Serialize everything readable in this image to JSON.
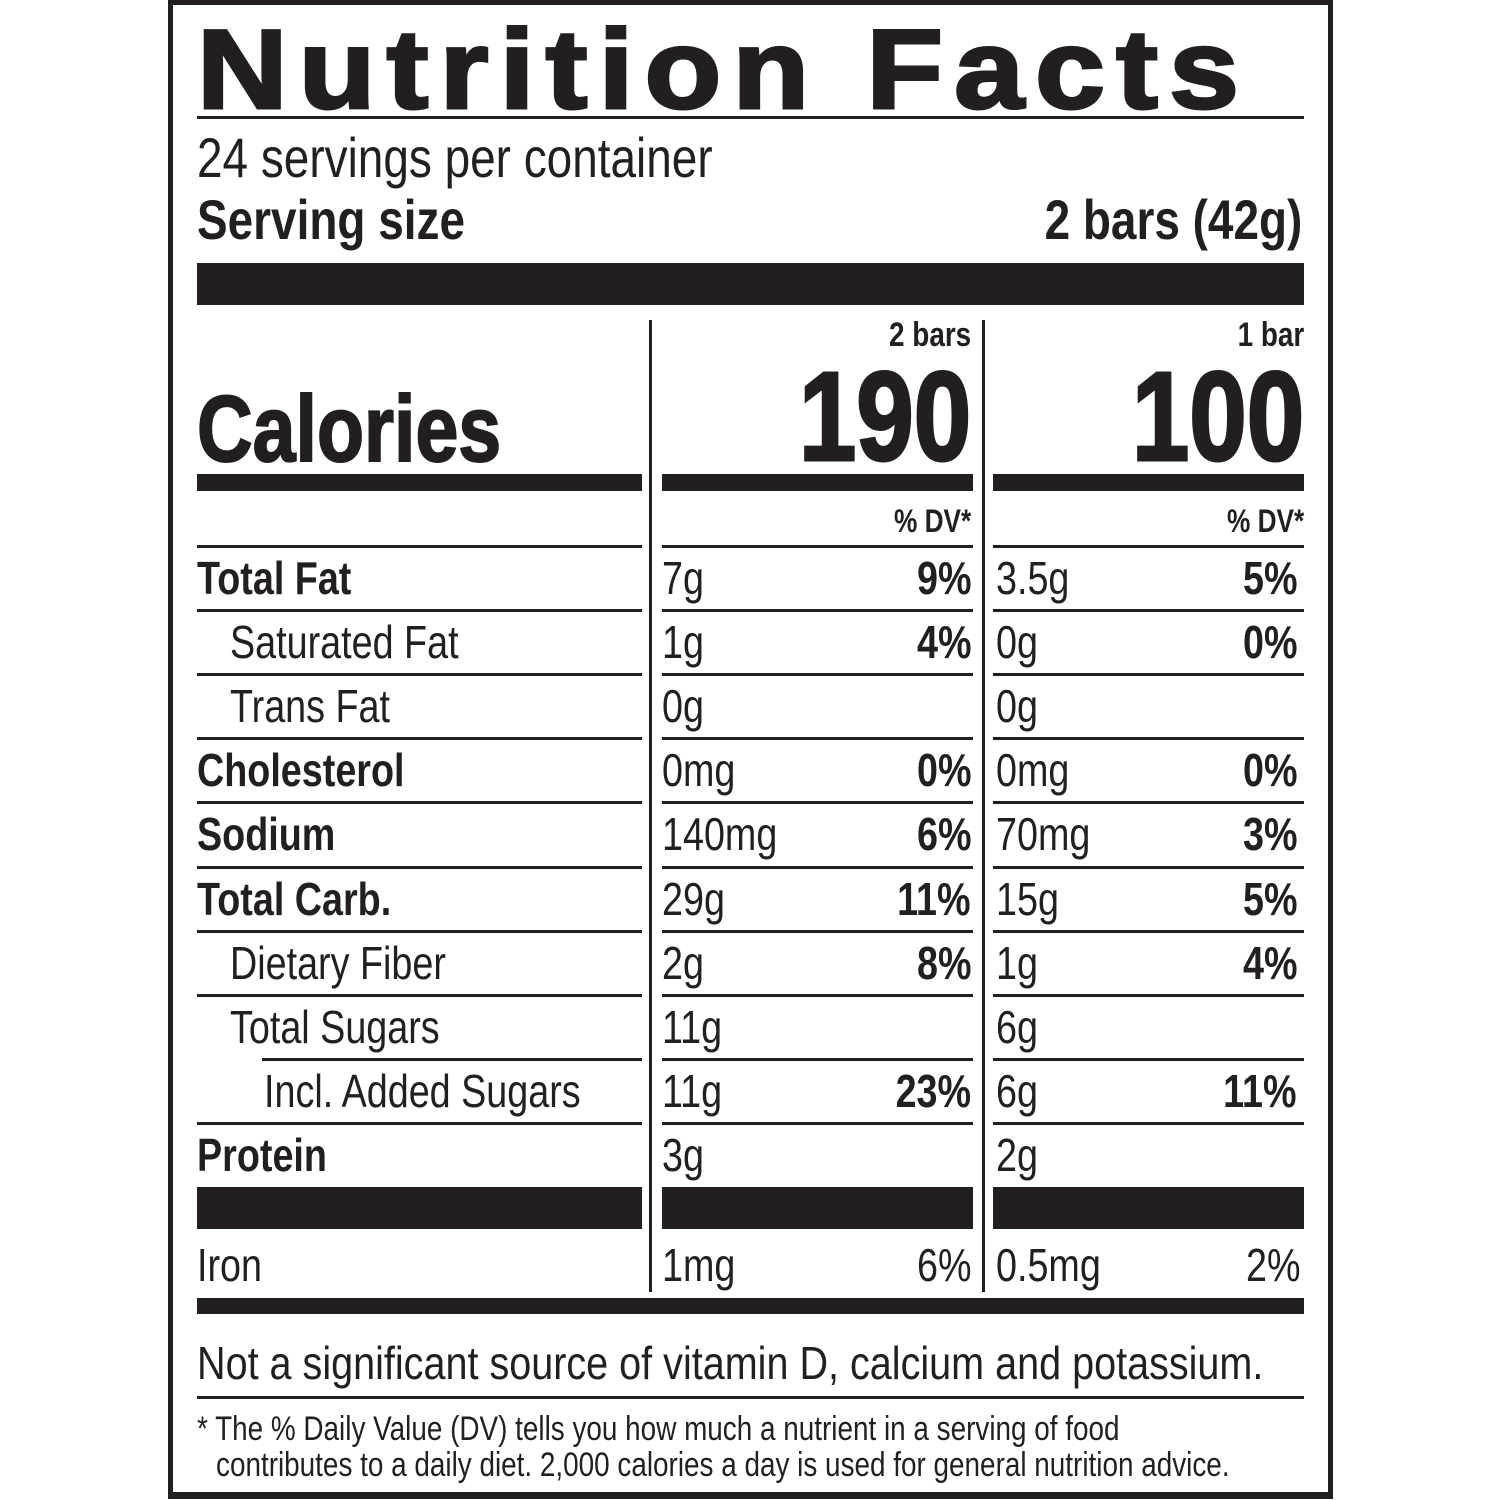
{
  "title": "Nutrition Facts",
  "servings_per_container": "24 servings per container",
  "serving_size_label": "Serving size",
  "serving_size_value": "2 bars (42g)",
  "calories_label": "Calories",
  "columns": [
    {
      "header": "2 bars",
      "calories": "190",
      "dv_header": "% DV*"
    },
    {
      "header": "1 bar",
      "calories": "100",
      "dv_header": "% DV*"
    }
  ],
  "nutrients": [
    {
      "name": "Total Fat",
      "bold": true,
      "indent": 0,
      "values": [
        {
          "amount": "7g",
          "dv": "9%"
        },
        {
          "amount": "3.5g",
          "dv": "5%"
        }
      ]
    },
    {
      "name": "Saturated Fat",
      "bold": false,
      "indent": 1,
      "values": [
        {
          "amount": "1g",
          "dv": "4%"
        },
        {
          "amount": "0g",
          "dv": "0%"
        }
      ]
    },
    {
      "name": "Trans Fat",
      "bold": false,
      "indent": 1,
      "values": [
        {
          "amount": "0g",
          "dv": ""
        },
        {
          "amount": "0g",
          "dv": ""
        }
      ]
    },
    {
      "name": "Cholesterol",
      "bold": true,
      "indent": 0,
      "values": [
        {
          "amount": "0mg",
          "dv": "0%"
        },
        {
          "amount": "0mg",
          "dv": "0%"
        }
      ]
    },
    {
      "name": "Sodium",
      "bold": true,
      "indent": 0,
      "values": [
        {
          "amount": "140mg",
          "dv": "6%"
        },
        {
          "amount": "70mg",
          "dv": "3%"
        }
      ]
    },
    {
      "name": "Total Carb.",
      "bold": true,
      "indent": 0,
      "values": [
        {
          "amount": "29g",
          "dv": "11%"
        },
        {
          "amount": "15g",
          "dv": "5%"
        }
      ]
    },
    {
      "name": "Dietary Fiber",
      "bold": false,
      "indent": 1,
      "values": [
        {
          "amount": "2g",
          "dv": "8%"
        },
        {
          "amount": "1g",
          "dv": "4%"
        }
      ]
    },
    {
      "name": "Total Sugars",
      "bold": false,
      "indent": 1,
      "values": [
        {
          "amount": "11g",
          "dv": ""
        },
        {
          "amount": "6g",
          "dv": ""
        }
      ]
    },
    {
      "name": "Incl. Added Sugars",
      "bold": false,
      "indent": 2,
      "values": [
        {
          "amount": "11g",
          "dv": "23%"
        },
        {
          "amount": "6g",
          "dv": "11%"
        }
      ]
    },
    {
      "name": "Protein",
      "bold": true,
      "indent": 0,
      "values": [
        {
          "amount": "3g",
          "dv": ""
        },
        {
          "amount": "2g",
          "dv": ""
        }
      ]
    }
  ],
  "minerals": [
    {
      "name": "Iron",
      "values": [
        {
          "amount": "1mg",
          "dv": "6%"
        },
        {
          "amount": "0.5mg",
          "dv": "2%"
        }
      ]
    }
  ],
  "not_significant": "Not a significant source of vitamin D, calcium and potassium.",
  "footnote_line1": "* The % Daily Value (DV) tells you how much a nutrient in a serving of food",
  "footnote_line2": "contributes to a daily diet. 2,000 calories a day is used for general nutrition advice."
}
